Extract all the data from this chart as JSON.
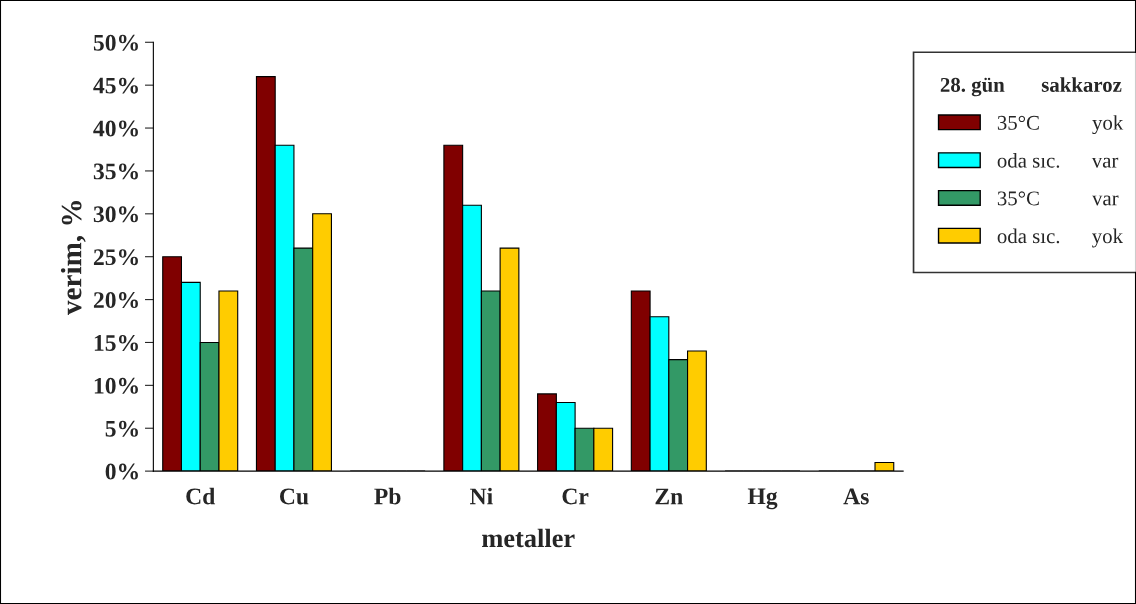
{
  "chart_data": {
    "type": "bar",
    "xlabel": "metaller",
    "ylabel": "verim, %",
    "legend_title": "28. gün       sakkaroz",
    "categories": [
      "Cd",
      "Cu",
      "Pb",
      "Ni",
      "Cr",
      "Zn",
      "Hg",
      "As"
    ],
    "series": [
      {
        "name": "35°C          yok",
        "color": "#800000",
        "values": [
          25,
          46,
          0,
          38,
          9,
          21,
          0,
          0
        ]
      },
      {
        "name": "oda sıc.      var",
        "color": "#00ffff",
        "values": [
          22,
          38,
          0,
          31,
          8,
          18,
          0,
          0
        ]
      },
      {
        "name": "35°C          var",
        "color": "#339966",
        "values": [
          15,
          26,
          0,
          21,
          5,
          13,
          0,
          0
        ]
      },
      {
        "name": "oda sıc.      yok",
        "color": "#ffcc00",
        "values": [
          21,
          30,
          0,
          26,
          5,
          14,
          0,
          1
        ]
      }
    ],
    "ylim": [
      0,
      50
    ],
    "yticks": [
      {
        "value": 0,
        "label": "0%"
      },
      {
        "value": 5,
        "label": "5%"
      },
      {
        "value": 10,
        "label": "10%"
      },
      {
        "value": 15,
        "label": "15%"
      },
      {
        "value": 20,
        "label": "20%"
      },
      {
        "value": 25,
        "label": "25%"
      },
      {
        "value": 30,
        "label": "30%"
      },
      {
        "value": 35,
        "label": "35%"
      },
      {
        "value": 40,
        "label": "40%"
      },
      {
        "value": 45,
        "label": "45%"
      },
      {
        "value": 50,
        "label": "50%"
      }
    ],
    "grid": false,
    "legend": "right"
  }
}
